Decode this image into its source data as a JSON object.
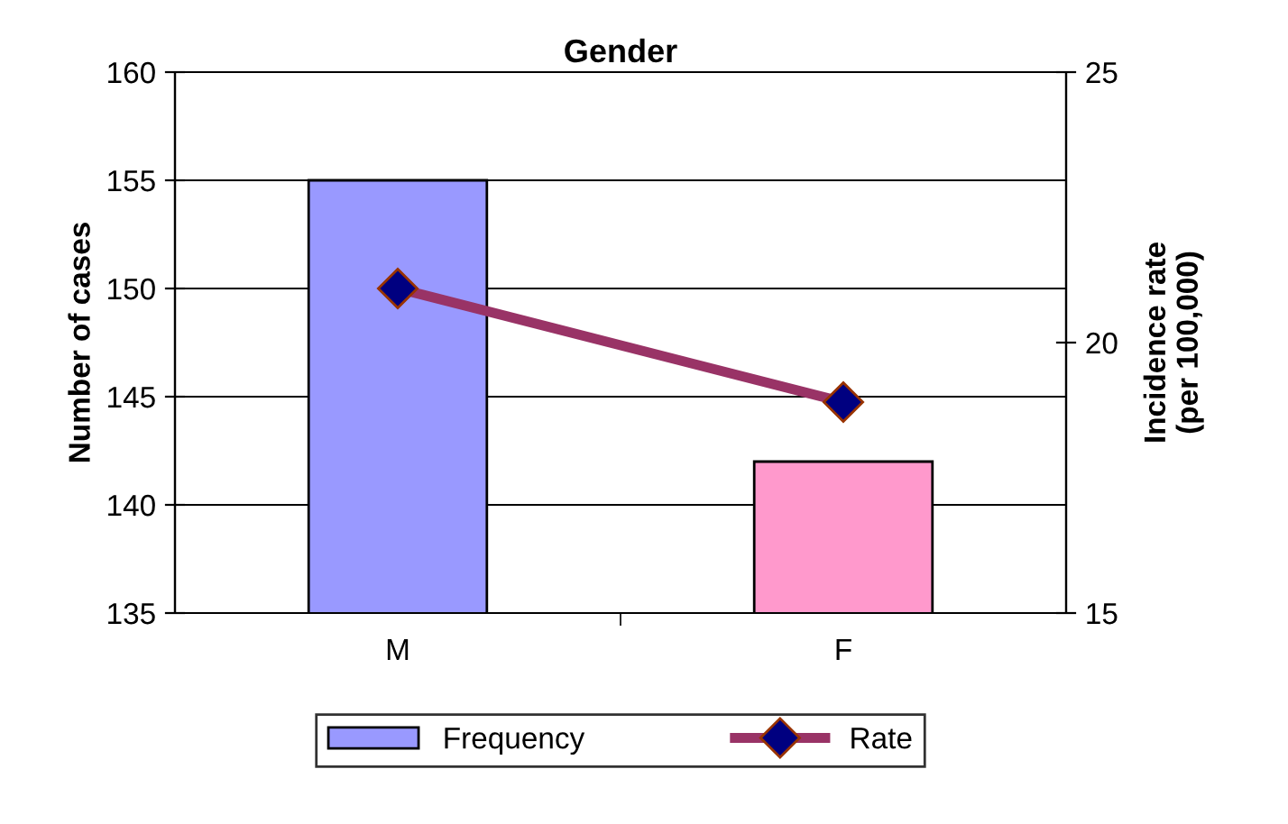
{
  "chart_data": {
    "type": "bar",
    "title": "Gender",
    "ylabel": "Number of cases",
    "y2label": "Incidence rate\n(per 100,000)",
    "categories": [
      "M",
      "F"
    ],
    "series": [
      {
        "name": "Frequency",
        "colors": [
          "#9999ff",
          "#ff99cc"
        ],
        "values": [
          155,
          142
        ]
      },
      {
        "name": "Rate",
        "type": "line",
        "axis": "y2",
        "color": "#993366",
        "marker": "diamond",
        "values": [
          21,
          18.9
        ]
      }
    ],
    "ylim": [
      135,
      160
    ],
    "yticks": [
      135,
      140,
      145,
      150,
      155,
      160
    ],
    "y2lim": [
      15,
      25
    ],
    "y2ticks": [
      15,
      20,
      25
    ],
    "grid": "y",
    "legend": "bottom"
  }
}
